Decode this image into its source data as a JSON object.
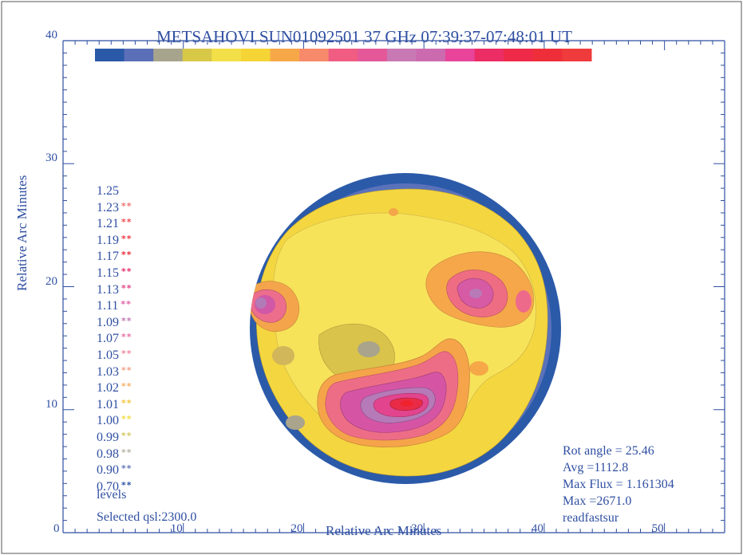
{
  "chart_data": {
    "type": "heatmap",
    "title": "METSAHOVI SUN01092501 37 GHz 07:39:37-07:48:01 UT",
    "xlabel": "Relative Arc Minutes",
    "ylabel": "Relative Arc Minutes",
    "xlim": [
      0,
      55
    ],
    "ylim": [
      0,
      40
    ],
    "x_ticks": [
      "0",
      "10",
      "20",
      "30",
      "40",
      "50"
    ],
    "y_ticks": [
      "10",
      "20",
      "30",
      "40"
    ],
    "colorbar": [
      "#2a59a8",
      "#5a6fb8",
      "#a7a48e",
      "#d8c848",
      "#f3e048",
      "#f5d435",
      "#f6a848",
      "#f78a6a",
      "#f05c82",
      "#e4589a",
      "#c879b4",
      "#cc6ab0",
      "#e8449a",
      "#ec2c64",
      "#ee2a48",
      "#ee2f3a",
      "#ef3b3b"
    ],
    "levels": [
      {
        "value": "1.25",
        "stars": "",
        "color": "#ee3a3a"
      },
      {
        "value": "1.23",
        "stars": "**",
        "color": "#f07074"
      },
      {
        "value": "1.21",
        "stars": "**",
        "color": "#ee4a52"
      },
      {
        "value": "1.19",
        "stars": "**",
        "color": "#ee3a48"
      },
      {
        "value": "1.17",
        "stars": "**",
        "color": "#e82c3c"
      },
      {
        "value": "1.15",
        "stars": "**",
        "color": "#e8306a"
      },
      {
        "value": "1.13",
        "stars": "**",
        "color": "#e44486"
      },
      {
        "value": "1.11",
        "stars": "**",
        "color": "#e060a4"
      },
      {
        "value": "1.09",
        "stars": "**",
        "color": "#c27ab8"
      },
      {
        "value": "1.07",
        "stars": "**",
        "color": "#e870a8"
      },
      {
        "value": "1.05",
        "stars": "**",
        "color": "#f08aa0"
      },
      {
        "value": "1.03",
        "stars": "**",
        "color": "#f3a088"
      },
      {
        "value": "1.02",
        "stars": "**",
        "color": "#f6b064"
      },
      {
        "value": "1.01",
        "stars": "**",
        "color": "#f3c43c"
      },
      {
        "value": "1.00",
        "stars": "**",
        "color": "#f0dc44"
      },
      {
        "value": "0.99",
        "stars": "**",
        "color": "#d4c860"
      },
      {
        "value": "0.98",
        "stars": "**",
        "color": "#b8b4a4"
      },
      {
        "value": "0.90",
        "stars": "**",
        "color": "#6878b8"
      },
      {
        "value": "0.70",
        "stars": "**",
        "color": "#2e55a8"
      }
    ],
    "levels_label": "levels",
    "selected_qsl": "Selected qsl:2300.0",
    "stats": [
      "Rot angle = 25.46",
      "Avg =1112.8",
      "Max Flux = 1.161304",
      "Max =2671.0",
      "readfastsur"
    ],
    "disk": {
      "center_x": 32,
      "center_y": 16,
      "radius_arcmin": 13.6
    },
    "hotspots": [
      {
        "x": 29.5,
        "y": 10.6,
        "level": 1.17
      },
      {
        "x": 42,
        "y": 19.8,
        "level": 1.11
      },
      {
        "x": 16.2,
        "y": 18.8,
        "level": 1.09
      }
    ]
  }
}
